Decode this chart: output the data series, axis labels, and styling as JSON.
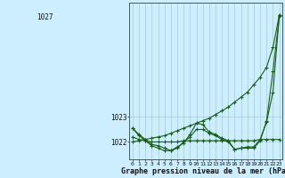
{
  "xlabel": "Graphe pression niveau de la mer (hPa)",
  "xlim": [
    -0.5,
    23.5
  ],
  "ylim": [
    1021.3,
    1027.6
  ],
  "yticks": [
    1022,
    1023
  ],
  "ytick_top": 1027,
  "xticks": [
    0,
    1,
    2,
    3,
    4,
    5,
    6,
    7,
    8,
    9,
    10,
    11,
    12,
    13,
    14,
    15,
    16,
    17,
    18,
    19,
    20,
    21,
    22,
    23
  ],
  "bg_color": "#cceeff",
  "grid_color": "#aacccc",
  "line_color": "#1a5c1a",
  "line1_rising": [
    1022.0,
    1022.05,
    1022.1,
    1022.15,
    1022.2,
    1022.25,
    1022.35,
    1022.45,
    1022.55,
    1022.65,
    1022.75,
    1022.85,
    1022.95,
    1023.1,
    1023.25,
    1023.4,
    1023.6,
    1023.8,
    1024.0,
    1024.3,
    1024.6,
    1025.0,
    1025.8,
    1027.1
  ],
  "line2_wavy": [
    1022.55,
    1022.25,
    1022.05,
    1021.85,
    1021.75,
    1021.65,
    1021.65,
    1021.8,
    1021.95,
    1022.3,
    1022.75,
    1022.7,
    1022.4,
    1022.3,
    1022.15,
    1022.05,
    1021.7,
    1021.75,
    1021.8,
    1021.8,
    1022.1,
    1022.8,
    1024.0,
    1027.1
  ],
  "line3_flat": [
    1022.2,
    1022.1,
    1022.05,
    1022.0,
    1022.0,
    1022.0,
    1022.0,
    1022.0,
    1022.05,
    1022.05,
    1022.05,
    1022.05,
    1022.05,
    1022.05,
    1022.05,
    1022.05,
    1022.05,
    1022.05,
    1022.05,
    1022.05,
    1022.1,
    1022.1,
    1022.1,
    1022.1
  ],
  "line4_mid": [
    1022.55,
    1022.3,
    1022.1,
    1021.9,
    1021.85,
    1021.75,
    1021.65,
    1021.75,
    1022.0,
    1022.2,
    1022.5,
    1022.5,
    1022.35,
    1022.25,
    1022.1,
    1022.0,
    1021.7,
    1021.75,
    1021.75,
    1021.75,
    1022.05,
    1022.85,
    1024.85,
    1027.05
  ]
}
